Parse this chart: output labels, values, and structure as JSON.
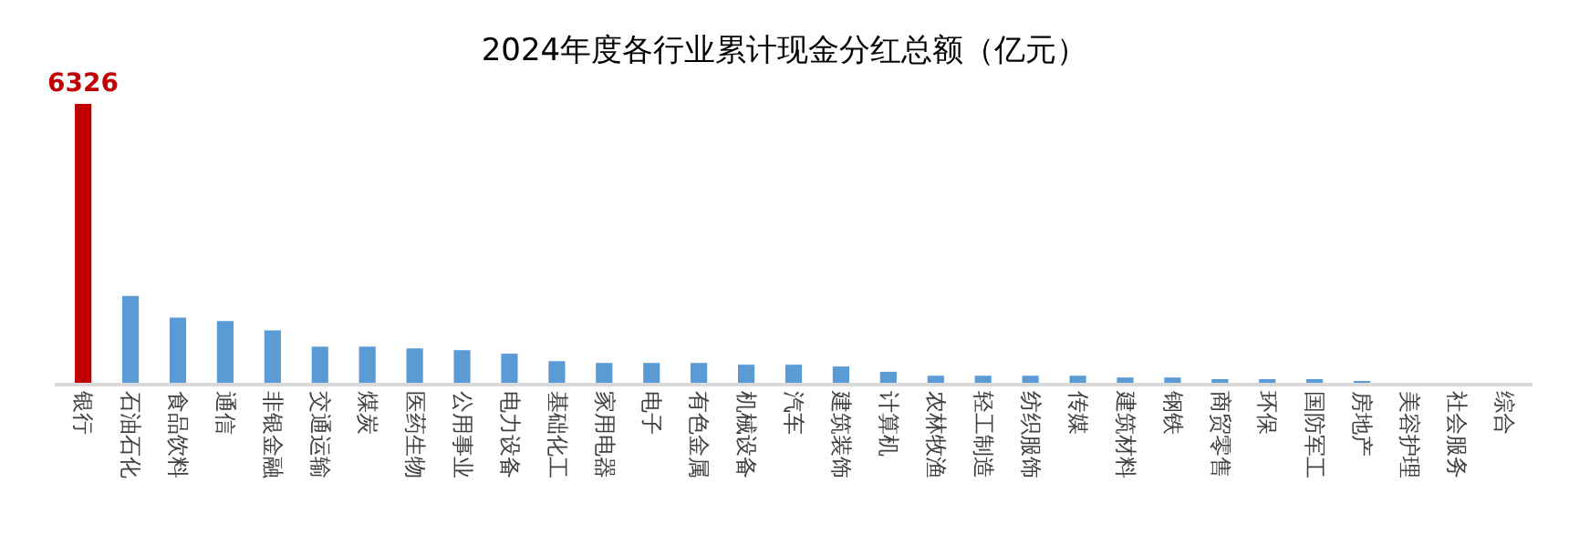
{
  "chart_data": {
    "type": "bar",
    "title": "2024年度各行业累计现金分红总额（亿元）",
    "categories": [
      "银行",
      "石油石化",
      "食品饮料",
      "通信",
      "非银金融",
      "交通运输",
      "煤炭",
      "医药生物",
      "公用事业",
      "电力设备",
      "基础化工",
      "家用电器",
      "电子",
      "有色金属",
      "机械设备",
      "汽车",
      "建筑装饰",
      "计算机",
      "农林牧渔",
      "轻工制造",
      "纺织服饰",
      "传媒",
      "建筑材料",
      "钢铁",
      "商贸零售",
      "环保",
      "国防军工",
      "房地产",
      "美容护理",
      "社会服务",
      "综合"
    ],
    "values": [
      6326,
      1970,
      1480,
      1400,
      1190,
      820,
      820,
      780,
      740,
      660,
      490,
      450,
      450,
      450,
      410,
      410,
      370,
      250,
      160,
      160,
      160,
      160,
      120,
      120,
      80,
      80,
      80,
      40,
      0,
      0,
      0
    ],
    "colors": [
      "#c00000",
      "#5b9bd5",
      "#5b9bd5",
      "#5b9bd5",
      "#5b9bd5",
      "#5b9bd5",
      "#5b9bd5",
      "#5b9bd5",
      "#5b9bd5",
      "#5b9bd5",
      "#5b9bd5",
      "#5b9bd5",
      "#5b9bd5",
      "#5b9bd5",
      "#5b9bd5",
      "#5b9bd5",
      "#5b9bd5",
      "#5b9bd5",
      "#5b9bd5",
      "#5b9bd5",
      "#5b9bd5",
      "#5b9bd5",
      "#5b9bd5",
      "#5b9bd5",
      "#5b9bd5",
      "#5b9bd5",
      "#5b9bd5",
      "#5b9bd5",
      "#5b9bd5",
      "#5b9bd5",
      "#5b9bd5"
    ],
    "value_labels": [
      "6326",
      null,
      null,
      null,
      null,
      null,
      null,
      null,
      null,
      null,
      null,
      null,
      null,
      null,
      null,
      null,
      null,
      null,
      null,
      null,
      null,
      null,
      null,
      null,
      null,
      null,
      null,
      null,
      null,
      null,
      null
    ],
    "tick_labels": "x"
  }
}
